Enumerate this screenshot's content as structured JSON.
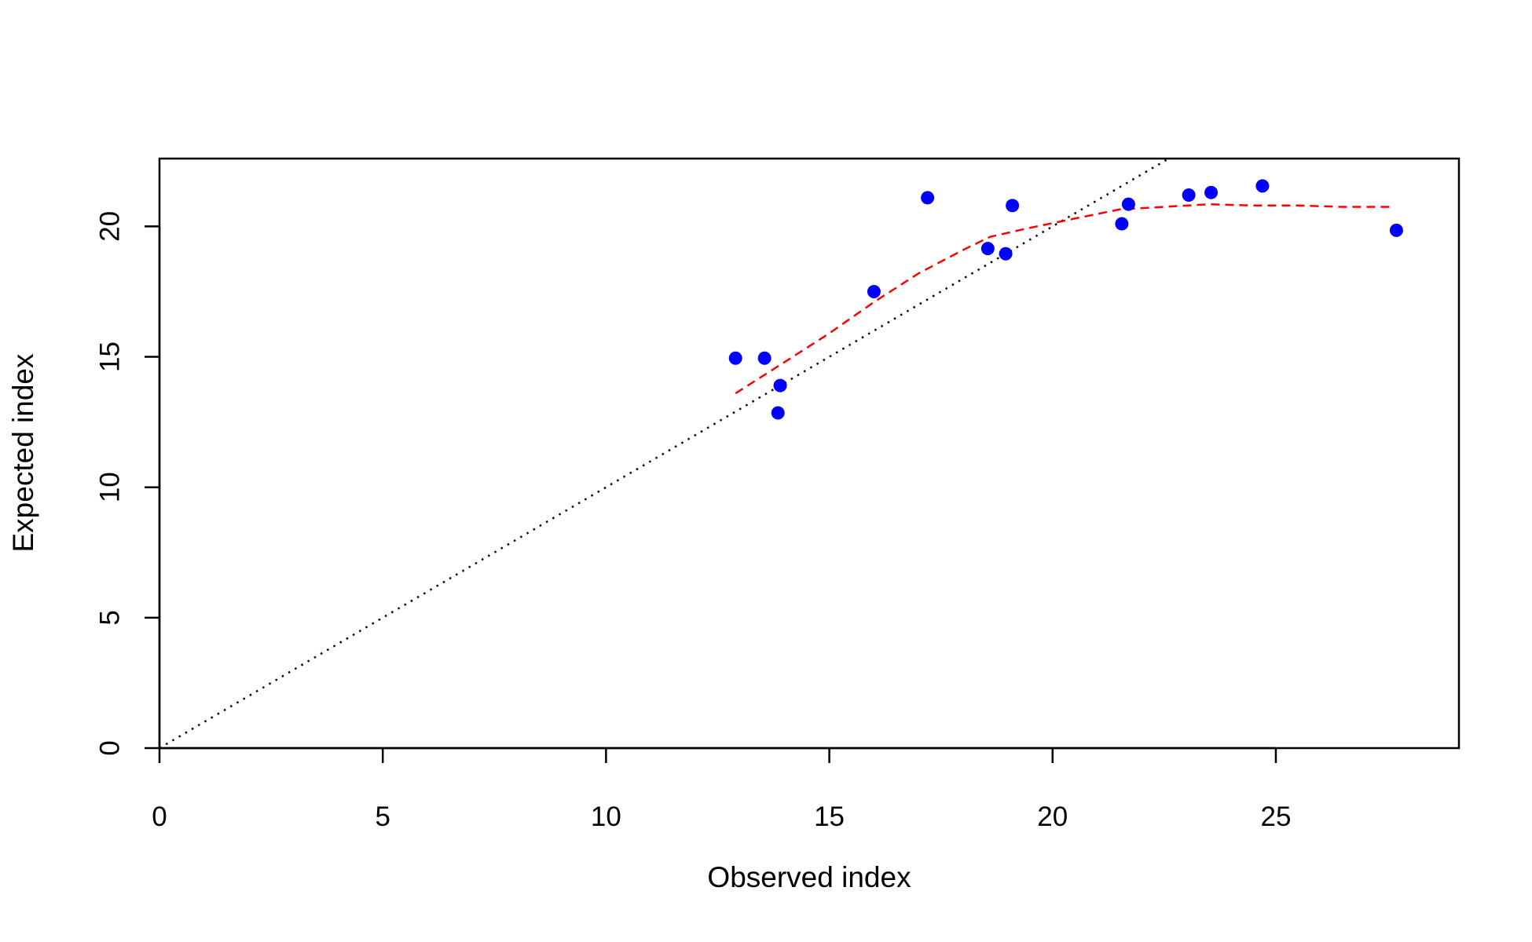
{
  "chart_data": {
    "type": "scatter",
    "title": "",
    "xlabel": "Observed index",
    "ylabel": "Expected index",
    "xlim": [
      0,
      29.1
    ],
    "ylim": [
      0,
      22.6
    ],
    "x_ticks": [
      "0",
      "5",
      "10",
      "15",
      "20",
      "25"
    ],
    "y_ticks": [
      "0",
      "5",
      "10",
      "15",
      "20"
    ],
    "grid": false,
    "legend": "none",
    "colors": {
      "points": "#0000ff",
      "smooth_line": "#ff0000",
      "reference_line": "#000000",
      "frame": "#000000"
    },
    "points": {
      "x": [
        12.9,
        13.55,
        13.85,
        13.9,
        16.0,
        17.2,
        18.55,
        18.95,
        19.1,
        21.55,
        21.7,
        23.05,
        23.55,
        24.7,
        27.7
      ],
      "y": [
        14.95,
        14.95,
        12.85,
        13.9,
        17.5,
        21.1,
        19.15,
        18.95,
        20.8,
        20.1,
        20.85,
        21.2,
        21.3,
        21.55,
        19.85
      ]
    },
    "smooth_line": {
      "style": "dashed",
      "x": [
        12.9,
        14.0,
        15.0,
        16.0,
        17.0,
        18.0,
        18.6,
        19.5,
        20.5,
        21.5,
        22.5,
        23.5,
        24.5,
        25.5,
        26.5,
        27.6
      ],
      "y": [
        13.6,
        14.8,
        15.9,
        17.1,
        18.2,
        19.1,
        19.6,
        19.95,
        20.3,
        20.65,
        20.75,
        20.85,
        20.8,
        20.8,
        20.75,
        20.75
      ]
    },
    "reference_line": {
      "style": "dotted",
      "slope": 1,
      "intercept": 0
    }
  }
}
